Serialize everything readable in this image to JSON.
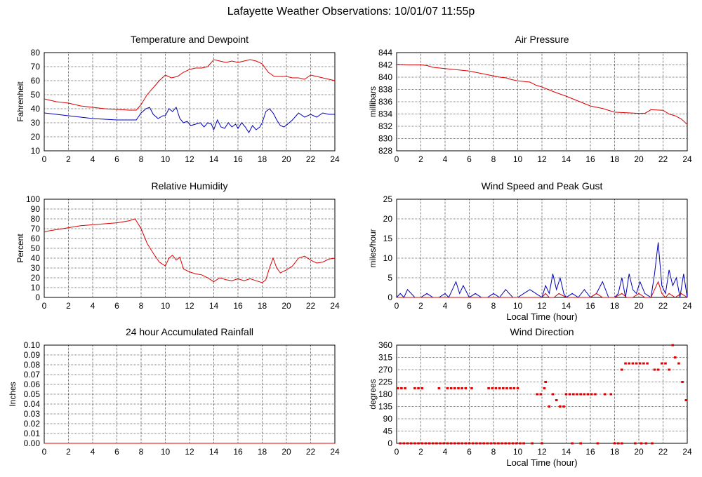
{
  "page_title": "Lafayette Weather Observations: 10/01/07 11:55p",
  "colors": {
    "red": "#dd0000",
    "blue": "#0000bb",
    "grid": "#000000"
  },
  "chart_data": [
    {
      "id": "temp",
      "type": "line",
      "title": "Temperature and Dewpoint",
      "xlabel": "",
      "ylabel": "Fahrenheit",
      "xlim": [
        0,
        24
      ],
      "ylim": [
        10,
        80
      ],
      "xticks": [
        0,
        2,
        4,
        6,
        8,
        10,
        12,
        14,
        16,
        18,
        20,
        22,
        24
      ],
      "yticks": [
        10,
        20,
        30,
        40,
        50,
        60,
        70,
        80
      ],
      "ytick_labels": [
        "10",
        "20",
        "30",
        "40",
        "50",
        "60",
        "70",
        "80"
      ],
      "grid": true,
      "series": [
        {
          "color": "red",
          "x": [
            0,
            1,
            2,
            3,
            4,
            5,
            6,
            7,
            7.6,
            8,
            8.5,
            9,
            9.5,
            10,
            10.5,
            11,
            11.5,
            12,
            12.5,
            13,
            13.5,
            14,
            14.5,
            15,
            15.5,
            16,
            16.5,
            17,
            17.5,
            18,
            18.5,
            19,
            19.5,
            20,
            20.5,
            21,
            21.5,
            22,
            22.5,
            23,
            23.5,
            24
          ],
          "y": [
            47,
            45,
            44,
            42,
            41,
            40,
            39.5,
            39,
            39,
            43,
            50,
            55,
            60,
            64,
            62,
            63,
            66,
            68,
            69,
            69,
            70,
            75,
            74,
            73,
            74,
            73,
            74,
            75,
            74,
            72,
            66,
            63,
            63,
            63,
            62,
            62,
            61,
            64,
            63,
            62,
            61,
            60
          ]
        },
        {
          "color": "blue",
          "x": [
            0,
            1,
            2,
            3,
            4,
            5,
            6,
            7,
            7.6,
            8,
            8.4,
            8.7,
            9,
            9.4,
            9.8,
            10,
            10.3,
            10.6,
            10.9,
            11.2,
            11.5,
            11.8,
            12.1,
            12.5,
            12.9,
            13.2,
            13.5,
            13.8,
            14,
            14.3,
            14.6,
            14.9,
            15.2,
            15.5,
            15.8,
            16,
            16.3,
            16.6,
            16.9,
            17.2,
            17.5,
            17.8,
            18,
            18.3,
            18.6,
            18.9,
            19.2,
            19.5,
            19.8,
            20.1,
            20.5,
            21,
            21.5,
            22,
            22.5,
            23,
            23.5,
            24
          ],
          "y": [
            37,
            36,
            35,
            34,
            33,
            32.5,
            32,
            32,
            32,
            37,
            40,
            41,
            36,
            33,
            35,
            35,
            40,
            38,
            41,
            33,
            30,
            31,
            28,
            29,
            30,
            27,
            30,
            29,
            25,
            32,
            27,
            26,
            30,
            27,
            29,
            26,
            30,
            27,
            23,
            28,
            25,
            27,
            30,
            38,
            40,
            37,
            32,
            28,
            27,
            29,
            32,
            37,
            34,
            36,
            34,
            37,
            36,
            36
          ]
        }
      ]
    },
    {
      "id": "pressure",
      "type": "line",
      "title": "Air Pressure",
      "xlabel": "",
      "ylabel": "millibars",
      "xlim": [
        0,
        24
      ],
      "ylim": [
        828,
        844
      ],
      "xticks": [
        0,
        2,
        4,
        6,
        8,
        10,
        12,
        14,
        16,
        18,
        20,
        22,
        24
      ],
      "yticks": [
        828,
        830,
        832,
        834,
        836,
        838,
        840,
        842,
        844
      ],
      "ytick_labels": [
        "828",
        "830",
        "832",
        "834",
        "836",
        "838",
        "840",
        "842",
        "844"
      ],
      "grid": true,
      "series": [
        {
          "color": "red",
          "x": [
            0,
            1,
            2,
            2.5,
            3,
            3.5,
            4,
            5,
            6,
            7,
            8,
            8.5,
            9,
            9.5,
            10,
            11,
            11.5,
            12,
            13,
            14,
            15,
            16,
            17,
            18,
            19,
            20,
            20.5,
            21,
            22,
            22.5,
            23,
            23.5,
            24
          ],
          "y": [
            842.1,
            842,
            842,
            841.9,
            841.6,
            841.5,
            841.4,
            841.2,
            841,
            840.6,
            840.2,
            840,
            839.9,
            839.6,
            839.4,
            839.2,
            838.7,
            838.4,
            837.6,
            836.9,
            836.1,
            835.3,
            834.9,
            834.3,
            834.2,
            834.1,
            834.1,
            834.7,
            834.6,
            834,
            833.7,
            833.2,
            832.3
          ]
        }
      ]
    },
    {
      "id": "humidity",
      "type": "line",
      "title": "Relative Humidity",
      "xlabel": "",
      "ylabel": "Percent",
      "xlim": [
        0,
        24
      ],
      "ylim": [
        0,
        100
      ],
      "xticks": [
        0,
        2,
        4,
        6,
        8,
        10,
        12,
        14,
        16,
        18,
        20,
        22,
        24
      ],
      "yticks": [
        0,
        10,
        20,
        30,
        40,
        50,
        60,
        70,
        80,
        90,
        100
      ],
      "ytick_labels": [
        "0",
        "10",
        "20",
        "30",
        "40",
        "50",
        "60",
        "70",
        "80",
        "90",
        "100"
      ],
      "grid": true,
      "series": [
        {
          "color": "red",
          "x": [
            0,
            1,
            2,
            3,
            4,
            5,
            6,
            7,
            7.5,
            8,
            8.5,
            9,
            9.5,
            10,
            10.3,
            10.6,
            10.9,
            11.2,
            11.5,
            12,
            12.5,
            13,
            13.5,
            14,
            14.5,
            15,
            15.5,
            16,
            16.5,
            17,
            17.5,
            18,
            18.3,
            18.6,
            18.9,
            19.2,
            19.5,
            20,
            20.5,
            21,
            21.5,
            22,
            22.5,
            23,
            23.5,
            24
          ],
          "y": [
            67,
            69,
            71,
            73,
            74,
            75,
            76,
            78,
            80,
            70,
            55,
            45,
            36,
            32,
            40,
            43,
            38,
            41,
            29,
            26,
            24,
            23,
            20,
            16,
            20,
            18,
            17,
            19,
            17,
            19,
            17,
            15,
            18,
            30,
            40,
            30,
            25,
            28,
            32,
            40,
            42,
            38,
            35,
            36,
            39,
            40
          ]
        }
      ]
    },
    {
      "id": "wind",
      "type": "line",
      "title": "Wind Speed and Peak Gust",
      "xlabel": "Local Time (hour)",
      "ylabel": "miles/hour",
      "xlim": [
        0,
        24
      ],
      "ylim": [
        0,
        25
      ],
      "xticks": [
        0,
        2,
        4,
        6,
        8,
        10,
        12,
        14,
        16,
        18,
        20,
        22,
        24
      ],
      "yticks": [
        0,
        5,
        10,
        15,
        20,
        25
      ],
      "ytick_labels": [
        "0",
        "5",
        "10",
        "15",
        "20",
        "25"
      ],
      "grid": true,
      "series": [
        {
          "color": "blue",
          "x": [
            0,
            0.3,
            0.6,
            0.9,
            1.5,
            2,
            2.5,
            3,
            3.5,
            4,
            4.3,
            4.6,
            4.9,
            5.2,
            5.5,
            6,
            6.5,
            7,
            7.5,
            8,
            8.5,
            9,
            9.3,
            9.6,
            10,
            10.5,
            11,
            11.5,
            12,
            12.3,
            12.6,
            12.9,
            13.2,
            13.5,
            13.8,
            14,
            14.5,
            15,
            15.5,
            16,
            16.5,
            17,
            17.5,
            18,
            18.3,
            18.6,
            18.9,
            19.2,
            19.5,
            19.8,
            20.1,
            20.5,
            21,
            21.3,
            21.6,
            21.9,
            22.2,
            22.5,
            22.8,
            23.1,
            23.4,
            23.7,
            24
          ],
          "y": [
            0,
            1,
            0,
            2,
            0,
            0,
            1,
            0,
            0,
            1,
            0,
            2,
            4,
            1,
            3,
            0,
            1,
            0,
            0,
            1,
            0,
            2,
            1,
            0,
            0,
            1,
            2,
            1,
            0,
            3,
            1,
            6,
            2,
            5,
            1,
            0,
            1,
            0,
            2,
            0,
            1,
            4,
            0,
            0,
            1,
            5,
            0,
            6,
            2,
            1,
            4,
            1,
            0,
            6,
            14,
            3,
            1,
            7,
            3,
            5,
            0,
            6,
            0
          ]
        },
        {
          "color": "red",
          "x": [
            0,
            1,
            2,
            3,
            4,
            5,
            6,
            7,
            8,
            9,
            10,
            11,
            12,
            12.3,
            12.6,
            13,
            13.4,
            14,
            15,
            16,
            16.5,
            17,
            18,
            18.6,
            19,
            19.5,
            20,
            20.5,
            21,
            21.3,
            21.6,
            21.9,
            22.2,
            22.5,
            23,
            23.5,
            24
          ],
          "y": [
            0,
            0,
            0,
            0,
            0,
            0,
            0,
            0,
            0,
            0,
            0,
            0,
            0,
            1,
            0,
            0,
            1,
            0,
            0,
            0,
            1,
            0,
            0,
            1,
            0,
            0,
            1,
            0,
            0,
            2,
            4,
            1,
            0,
            1,
            0,
            1,
            0
          ]
        }
      ]
    },
    {
      "id": "rain",
      "type": "line",
      "title": "24 hour Accumulated Rainfall",
      "xlabel": "",
      "ylabel": "Inches",
      "xlim": [
        0,
        24
      ],
      "ylim": [
        0,
        0.1
      ],
      "xticks": [
        0,
        2,
        4,
        6,
        8,
        10,
        12,
        14,
        16,
        18,
        20,
        22,
        24
      ],
      "yticks": [
        0,
        0.01,
        0.02,
        0.03,
        0.04,
        0.05,
        0.06,
        0.07,
        0.08,
        0.09,
        0.1
      ],
      "ytick_labels": [
        "0.00",
        "0.01",
        "0.02",
        "0.03",
        "0.04",
        "0.05",
        "0.06",
        "0.07",
        "0.08",
        "0.09",
        "0.10"
      ],
      "grid": true,
      "series": [
        {
          "color": "red",
          "x": [
            0,
            24
          ],
          "y": [
            0,
            0
          ]
        }
      ]
    },
    {
      "id": "direction",
      "type": "scatter",
      "title": "Wind Direction",
      "xlabel": "Local Time (hour)",
      "ylabel": "degrees",
      "xlim": [
        0,
        24
      ],
      "ylim": [
        0,
        360
      ],
      "xticks": [
        0,
        2,
        4,
        6,
        8,
        10,
        12,
        14,
        16,
        18,
        20,
        22,
        24
      ],
      "yticks": [
        0,
        45,
        90,
        135,
        180,
        225,
        270,
        315,
        360
      ],
      "ytick_labels": [
        "0",
        "45",
        "90",
        "135",
        "180",
        "225",
        "270",
        "315",
        "360"
      ],
      "grid": true,
      "series": [
        {
          "color": "red",
          "x": [
            0.1,
            0.4,
            0.7,
            1.5,
            1.8,
            2.1,
            3.5,
            4.2,
            4.5,
            4.8,
            5.1,
            5.4,
            5.7,
            6.2,
            7.6,
            7.9,
            8.2,
            8.5,
            8.8,
            9.1,
            9.4,
            9.7,
            10,
            11.6,
            11.9,
            12.2,
            12.3,
            12.6,
            12.9,
            13.2,
            13.5,
            13.8,
            14,
            14.3,
            14.6,
            14.9,
            15.2,
            15.5,
            15.8,
            16.1,
            16.4,
            17.2,
            17.7,
            18.6,
            18.9,
            19.2,
            19.5,
            19.8,
            20.1,
            20.4,
            20.7,
            21.3,
            21.6,
            21.9,
            22.2,
            22.5,
            22.8,
            23,
            23.3,
            23.6,
            23.9,
            0.3,
            0.6,
            0.9,
            1.2,
            1.5,
            1.8,
            2.1,
            2.4,
            2.7,
            3,
            3.3,
            3.6,
            3.9,
            4.2,
            4.5,
            4.8,
            5.1,
            5.4,
            5.7,
            6,
            6.3,
            6.6,
            6.9,
            7.2,
            7.5,
            7.8,
            8.1,
            8.4,
            8.7,
            9,
            9.3,
            9.6,
            9.9,
            10.2,
            10.5,
            11.2,
            12,
            14.5,
            15.2,
            16.6,
            18,
            18.3,
            18.6,
            19.7,
            20.2,
            20.6,
            21.1
          ],
          "y": [
            202,
            202,
            202,
            202,
            202,
            202,
            202,
            202,
            202,
            202,
            202,
            202,
            202,
            202,
            202,
            202,
            202,
            202,
            202,
            202,
            202,
            202,
            202,
            180,
            180,
            202,
            225,
            135,
            180,
            158,
            135,
            135,
            180,
            180,
            180,
            180,
            180,
            180,
            180,
            180,
            180,
            180,
            180,
            270,
            293,
            293,
            293,
            293,
            293,
            293,
            293,
            270,
            270,
            293,
            293,
            270,
            360,
            315,
            293,
            225,
            158,
            0,
            0,
            0,
            0,
            0,
            0,
            0,
            0,
            0,
            0,
            0,
            0,
            0,
            0,
            0,
            0,
            0,
            0,
            0,
            0,
            0,
            0,
            0,
            0,
            0,
            0,
            0,
            0,
            0,
            0,
            0,
            0,
            0,
            0,
            0,
            0,
            0,
            0,
            0,
            0,
            0,
            0,
            0,
            0,
            0,
            0,
            0
          ]
        }
      ]
    }
  ]
}
